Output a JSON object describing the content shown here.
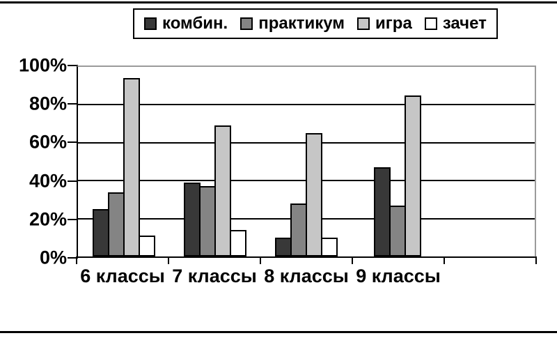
{
  "chart_data": {
    "type": "bar",
    "title": "",
    "categories": [
      "6 классы",
      "7 классы",
      "8 классы",
      "9 классы"
    ],
    "series": [
      {
        "name": "комбин.",
        "color": "#383838",
        "values": [
          25,
          39,
          10,
          47
        ]
      },
      {
        "name": "практикум",
        "color": "#848484",
        "values": [
          34,
          37,
          28,
          27
        ]
      },
      {
        "name": "игра",
        "color": "#c6c6c6",
        "values": [
          94,
          69,
          65,
          85
        ]
      },
      {
        "name": "зачет",
        "color": "#ffffff",
        "values": [
          11,
          14,
          10,
          0
        ]
      }
    ],
    "ylim": [
      0,
      100
    ],
    "ytick_labels": [
      "100%",
      "80%",
      "60%",
      "40%",
      "20%",
      "0%"
    ],
    "x_slots": 5,
    "grid": true,
    "legend_position": "top",
    "colors": {
      "gridline": "#000000",
      "plot_border_gray": "#9a9a9a",
      "bar_border": "#000000",
      "background": "#ffffff"
    }
  }
}
